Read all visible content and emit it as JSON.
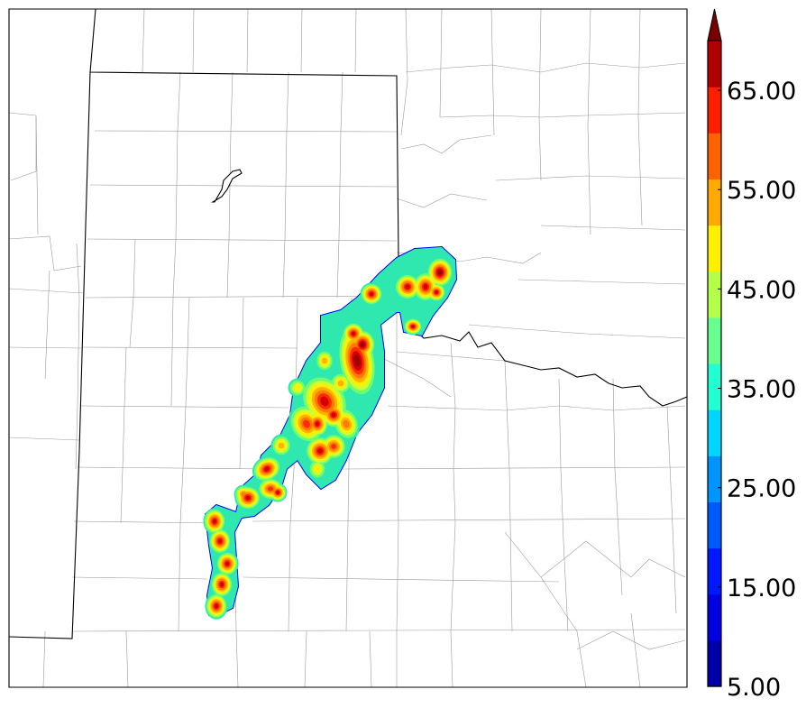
{
  "map": {
    "county_line_color": "#9a9a9a",
    "state_line_color": "#000000",
    "frame_color": "#000000",
    "precip_colors": [
      "#0000ff",
      "#00c8ff",
      "#2ee8b0",
      "#6cff6c",
      "#ccff33",
      "#ffee00",
      "#ffb000",
      "#ff7a00",
      "#ff2a00",
      "#d40000",
      "#9a0000"
    ]
  },
  "colorbar": {
    "min": 5,
    "max": 70,
    "step": 5,
    "extend": "max",
    "tick_labels": [
      "5.00",
      "15.00",
      "25.00",
      "35.00",
      "45.00",
      "55.00",
      "65.00"
    ],
    "colors": [
      "#0000a8",
      "#0000e0",
      "#0018ff",
      "#0058ff",
      "#0094ff",
      "#00d6ff",
      "#22ffd2",
      "#66ff90",
      "#b4ff48",
      "#fff000",
      "#ffaa00",
      "#ff6200",
      "#ff1e00",
      "#b00000"
    ],
    "extend_color": "#7a0000"
  }
}
